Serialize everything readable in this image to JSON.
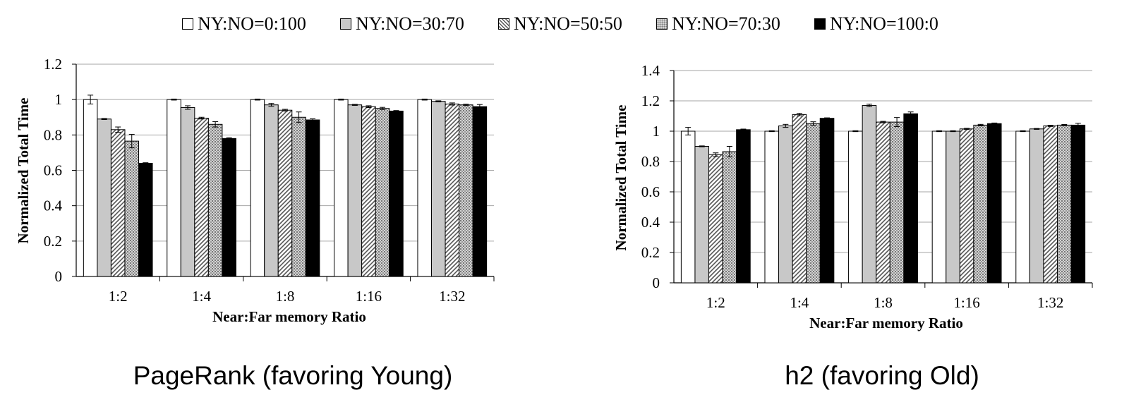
{
  "legend": [
    {
      "label": "NY:NO=0:100",
      "pattern": "white"
    },
    {
      "label": "NY:NO=30:70",
      "pattern": "gray"
    },
    {
      "label": "NY:NO=50:50",
      "pattern": "hatch"
    },
    {
      "label": "NY:NO=70:30",
      "pattern": "dots"
    },
    {
      "label": "NY:NO=100:0",
      "pattern": "black"
    }
  ],
  "captions": [
    "PageRank (favoring Young)",
    "h2 (favoring Old)"
  ],
  "chart_data": [
    {
      "type": "bar",
      "title": "PageRank (favoring Young)",
      "xlabel": "Near:Far memory Ratio",
      "ylabel": "Normalized Total Time",
      "ylim": [
        0,
        1.2
      ],
      "yticks": [
        "0",
        "0.2",
        "0.4",
        "0.6",
        "0.8",
        "1",
        "1.2"
      ],
      "grid": true,
      "legend_position": "top",
      "categories": [
        "1:2",
        "1:4",
        "1:8",
        "1:16",
        "1:32"
      ],
      "series": [
        {
          "name": "NY:NO=0:100",
          "values": [
            1.0,
            1.0,
            1.0,
            1.0,
            1.0
          ],
          "errors": [
            0.025,
            0.003,
            0.003,
            0.003,
            0.003
          ]
        },
        {
          "name": "NY:NO=30:70",
          "values": [
            0.89,
            0.955,
            0.97,
            0.97,
            0.99
          ],
          "errors": [
            0.003,
            0.01,
            0.008,
            0.003,
            0.003
          ]
        },
        {
          "name": "NY:NO=50:50",
          "values": [
            0.83,
            0.895,
            0.94,
            0.96,
            0.975
          ],
          "errors": [
            0.015,
            0.005,
            0.005,
            0.005,
            0.006
          ]
        },
        {
          "name": "NY:NO=70:30",
          "values": [
            0.765,
            0.86,
            0.9,
            0.95,
            0.97
          ],
          "errors": [
            0.038,
            0.015,
            0.03,
            0.006,
            0.004
          ]
        },
        {
          "name": "NY:NO=100:0",
          "values": [
            0.64,
            0.78,
            0.885,
            0.935,
            0.96
          ],
          "errors": [
            0.003,
            0.004,
            0.006,
            0.003,
            0.012
          ]
        }
      ]
    },
    {
      "type": "bar",
      "title": "h2 (favoring Old)",
      "xlabel": "Near:Far memory Ratio",
      "ylabel": "Normalized Total Time",
      "ylim": [
        0,
        1.4
      ],
      "yticks": [
        "0",
        "0.2",
        "0.4",
        "0.6",
        "0.8",
        "1",
        "1.2",
        "1.4"
      ],
      "grid": true,
      "legend_position": "top",
      "categories": [
        "1:2",
        "1:4",
        "1:8",
        "1:16",
        "1:32"
      ],
      "series": [
        {
          "name": "NY:NO=0:100",
          "values": [
            1.0,
            1.0,
            1.0,
            1.0,
            1.0
          ],
          "errors": [
            0.025,
            0.003,
            0.003,
            0.003,
            0.003
          ]
        },
        {
          "name": "NY:NO=30:70",
          "values": [
            0.9,
            1.035,
            1.17,
            1.0,
            1.015
          ],
          "errors": [
            0.003,
            0.01,
            0.008,
            0.003,
            0.003
          ]
        },
        {
          "name": "NY:NO=50:50",
          "values": [
            0.845,
            1.11,
            1.06,
            1.015,
            1.035
          ],
          "errors": [
            0.012,
            0.008,
            0.005,
            0.004,
            0.004
          ]
        },
        {
          "name": "NY:NO=70:30",
          "values": [
            0.865,
            1.05,
            1.06,
            1.04,
            1.04
          ],
          "errors": [
            0.035,
            0.012,
            0.03,
            0.005,
            0.004
          ]
        },
        {
          "name": "NY:NO=100:0",
          "values": [
            1.01,
            1.085,
            1.115,
            1.05,
            1.04
          ],
          "errors": [
            0.004,
            0.003,
            0.012,
            0.004,
            0.012
          ]
        }
      ]
    }
  ]
}
